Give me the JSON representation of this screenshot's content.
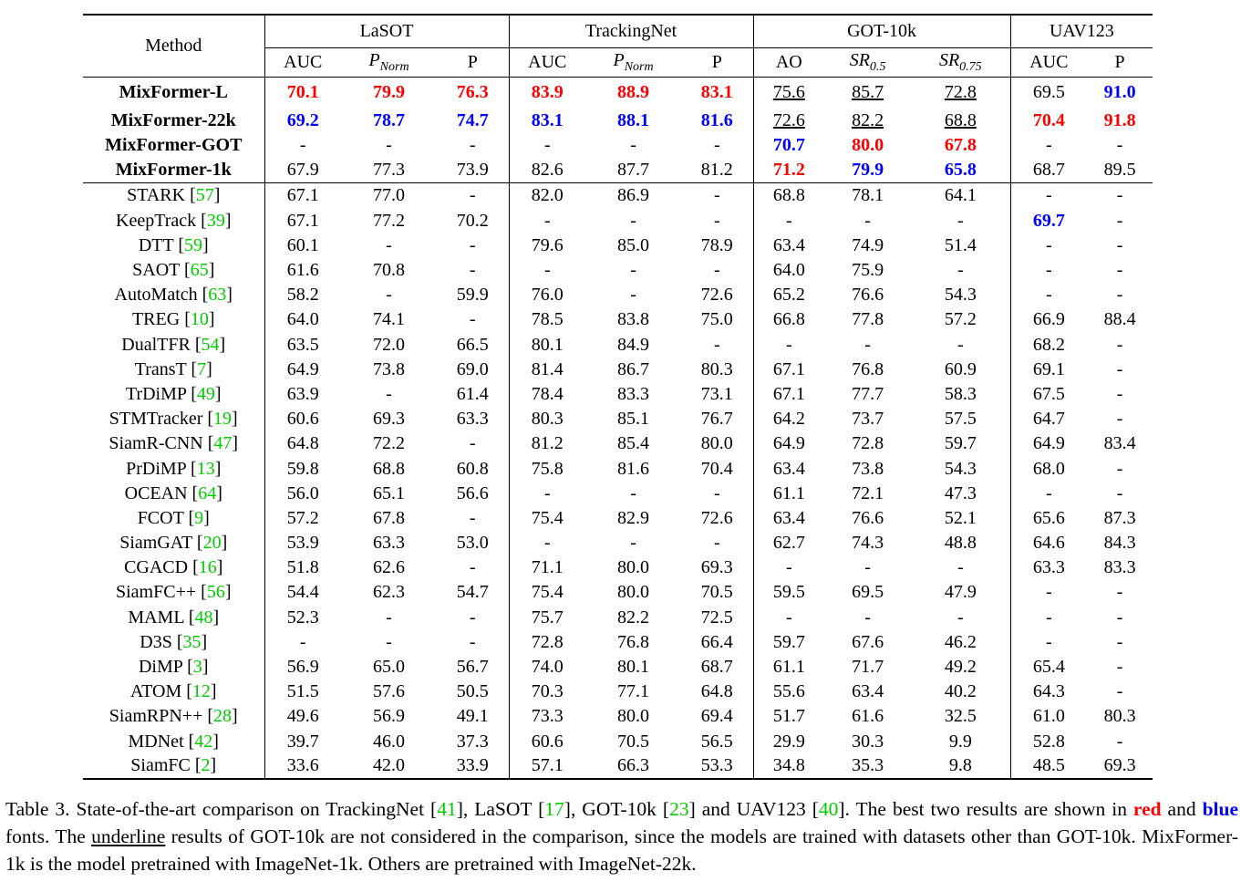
{
  "header": {
    "method": "Method",
    "groups": [
      "LaSOT",
      "TrackingNet",
      "GOT-10k",
      "UAV123"
    ],
    "cols": [
      {
        "base": "AUC",
        "sub": ""
      },
      {
        "base": "P",
        "sub": "Norm"
      },
      {
        "base": "P",
        "sub": ""
      },
      {
        "base": "AUC",
        "sub": ""
      },
      {
        "base": "P",
        "sub": "Norm"
      },
      {
        "base": "P",
        "sub": ""
      },
      {
        "base": "AO",
        "sub": ""
      },
      {
        "base": "SR",
        "sub": "0.5"
      },
      {
        "base": "SR",
        "sub": "0.75"
      },
      {
        "base": "AUC",
        "sub": ""
      },
      {
        "base": "P",
        "sub": ""
      }
    ]
  },
  "ours": [
    {
      "name": "MixFormer-L",
      "cells": [
        [
          "70.1",
          "r"
        ],
        [
          "79.9",
          "r"
        ],
        [
          "76.3",
          "r"
        ],
        [
          "83.9",
          "r"
        ],
        [
          "88.9",
          "r"
        ],
        [
          "83.1",
          "r"
        ],
        [
          "75.6",
          "u"
        ],
        [
          "85.7",
          "u"
        ],
        [
          "72.8",
          "u"
        ],
        [
          "69.5",
          ""
        ],
        [
          "91.0",
          "b"
        ]
      ]
    },
    {
      "name": "MixFormer-22k",
      "cells": [
        [
          "69.2",
          "b"
        ],
        [
          "78.7",
          "b"
        ],
        [
          "74.7",
          "b"
        ],
        [
          "83.1",
          "b"
        ],
        [
          "88.1",
          "b"
        ],
        [
          "81.6",
          "b"
        ],
        [
          "72.6",
          "u"
        ],
        [
          "82.2",
          "u"
        ],
        [
          "68.8",
          "u"
        ],
        [
          "70.4",
          "r"
        ],
        [
          "91.8",
          "r"
        ]
      ]
    },
    {
      "name": "MixFormer-GOT",
      "cells": [
        [
          "-",
          ""
        ],
        [
          "-",
          ""
        ],
        [
          "-",
          ""
        ],
        [
          "-",
          ""
        ],
        [
          "-",
          ""
        ],
        [
          "-",
          ""
        ],
        [
          "70.7",
          "b"
        ],
        [
          "80.0",
          "r"
        ],
        [
          "67.8",
          "r"
        ],
        [
          "-",
          ""
        ],
        [
          "-",
          ""
        ]
      ]
    },
    {
      "name": "MixFormer-1k",
      "cells": [
        [
          "67.9",
          ""
        ],
        [
          "77.3",
          ""
        ],
        [
          "73.9",
          ""
        ],
        [
          "82.6",
          ""
        ],
        [
          "87.7",
          ""
        ],
        [
          "81.2",
          ""
        ],
        [
          "71.2",
          "r"
        ],
        [
          "79.9",
          "b"
        ],
        [
          "65.8",
          "b"
        ],
        [
          "68.7",
          ""
        ],
        [
          "89.5",
          ""
        ]
      ]
    }
  ],
  "others": [
    {
      "name": "STARK",
      "ref": "57",
      "cells": [
        [
          "67.1",
          ""
        ],
        [
          "77.0",
          ""
        ],
        [
          "-",
          ""
        ],
        [
          "82.0",
          ""
        ],
        [
          "86.9",
          ""
        ],
        [
          "-",
          ""
        ],
        [
          "68.8",
          ""
        ],
        [
          "78.1",
          ""
        ],
        [
          "64.1",
          ""
        ],
        [
          "-",
          ""
        ],
        [
          "-",
          ""
        ]
      ]
    },
    {
      "name": "KeepTrack",
      "ref": "39",
      "cells": [
        [
          "67.1",
          ""
        ],
        [
          "77.2",
          ""
        ],
        [
          "70.2",
          ""
        ],
        [
          "-",
          ""
        ],
        [
          "-",
          ""
        ],
        [
          "-",
          ""
        ],
        [
          "-",
          ""
        ],
        [
          "-",
          ""
        ],
        [
          "-",
          ""
        ],
        [
          "69.7",
          "b"
        ],
        [
          "-",
          ""
        ]
      ]
    },
    {
      "name": "DTT",
      "ref": "59",
      "cells": [
        [
          "60.1",
          ""
        ],
        [
          "-",
          ""
        ],
        [
          "-",
          ""
        ],
        [
          "79.6",
          ""
        ],
        [
          "85.0",
          ""
        ],
        [
          "78.9",
          ""
        ],
        [
          "63.4",
          ""
        ],
        [
          "74.9",
          ""
        ],
        [
          "51.4",
          ""
        ],
        [
          "-",
          ""
        ],
        [
          "-",
          ""
        ]
      ]
    },
    {
      "name": "SAOT",
      "ref": "65",
      "cells": [
        [
          "61.6",
          ""
        ],
        [
          "70.8",
          ""
        ],
        [
          "-",
          ""
        ],
        [
          "-",
          ""
        ],
        [
          "-",
          ""
        ],
        [
          "-",
          ""
        ],
        [
          "64.0",
          ""
        ],
        [
          "75.9",
          ""
        ],
        [
          "-",
          ""
        ],
        [
          "-",
          ""
        ],
        [
          "-",
          ""
        ]
      ]
    },
    {
      "name": "AutoMatch",
      "ref": "63",
      "cells": [
        [
          "58.2",
          ""
        ],
        [
          "-",
          ""
        ],
        [
          "59.9",
          ""
        ],
        [
          "76.0",
          ""
        ],
        [
          "-",
          ""
        ],
        [
          "72.6",
          ""
        ],
        [
          "65.2",
          ""
        ],
        [
          "76.6",
          ""
        ],
        [
          "54.3",
          ""
        ],
        [
          "-",
          ""
        ],
        [
          "-",
          ""
        ]
      ]
    },
    {
      "name": "TREG",
      "ref": "10",
      "cells": [
        [
          "64.0",
          ""
        ],
        [
          "74.1",
          ""
        ],
        [
          "-",
          ""
        ],
        [
          "78.5",
          ""
        ],
        [
          "83.8",
          ""
        ],
        [
          "75.0",
          ""
        ],
        [
          "66.8",
          ""
        ],
        [
          "77.8",
          ""
        ],
        [
          "57.2",
          ""
        ],
        [
          "66.9",
          ""
        ],
        [
          "88.4",
          ""
        ]
      ]
    },
    {
      "name": "DualTFR",
      "ref": "54",
      "cells": [
        [
          "63.5",
          ""
        ],
        [
          "72.0",
          ""
        ],
        [
          "66.5",
          ""
        ],
        [
          "80.1",
          ""
        ],
        [
          "84.9",
          ""
        ],
        [
          "-",
          ""
        ],
        [
          "-",
          ""
        ],
        [
          "-",
          ""
        ],
        [
          "-",
          ""
        ],
        [
          "68.2",
          ""
        ],
        [
          "-",
          ""
        ]
      ]
    },
    {
      "name": "TransT",
      "ref": "7",
      "cells": [
        [
          "64.9",
          ""
        ],
        [
          "73.8",
          ""
        ],
        [
          "69.0",
          ""
        ],
        [
          "81.4",
          ""
        ],
        [
          "86.7",
          ""
        ],
        [
          "80.3",
          ""
        ],
        [
          "67.1",
          ""
        ],
        [
          "76.8",
          ""
        ],
        [
          "60.9",
          ""
        ],
        [
          "69.1",
          ""
        ],
        [
          "-",
          ""
        ]
      ]
    },
    {
      "name": "TrDiMP",
      "ref": "49",
      "cells": [
        [
          "63.9",
          ""
        ],
        [
          "-",
          ""
        ],
        [
          "61.4",
          ""
        ],
        [
          "78.4",
          ""
        ],
        [
          "83.3",
          ""
        ],
        [
          "73.1",
          ""
        ],
        [
          "67.1",
          ""
        ],
        [
          "77.7",
          ""
        ],
        [
          "58.3",
          ""
        ],
        [
          "67.5",
          ""
        ],
        [
          "-",
          ""
        ]
      ]
    },
    {
      "name": "STMTracker",
      "ref": "19",
      "cells": [
        [
          "60.6",
          ""
        ],
        [
          "69.3",
          ""
        ],
        [
          "63.3",
          ""
        ],
        [
          "80.3",
          ""
        ],
        [
          "85.1",
          ""
        ],
        [
          "76.7",
          ""
        ],
        [
          "64.2",
          ""
        ],
        [
          "73.7",
          ""
        ],
        [
          "57.5",
          ""
        ],
        [
          "64.7",
          ""
        ],
        [
          "-",
          ""
        ]
      ]
    },
    {
      "name": "SiamR-CNN",
      "ref": "47",
      "cells": [
        [
          "64.8",
          ""
        ],
        [
          "72.2",
          ""
        ],
        [
          "-",
          ""
        ],
        [
          "81.2",
          ""
        ],
        [
          "85.4",
          ""
        ],
        [
          "80.0",
          ""
        ],
        [
          "64.9",
          ""
        ],
        [
          "72.8",
          ""
        ],
        [
          "59.7",
          ""
        ],
        [
          "64.9",
          ""
        ],
        [
          "83.4",
          ""
        ]
      ]
    },
    {
      "name": "PrDiMP",
      "ref": "13",
      "cells": [
        [
          "59.8",
          ""
        ],
        [
          "68.8",
          ""
        ],
        [
          "60.8",
          ""
        ],
        [
          "75.8",
          ""
        ],
        [
          "81.6",
          ""
        ],
        [
          "70.4",
          ""
        ],
        [
          "63.4",
          ""
        ],
        [
          "73.8",
          ""
        ],
        [
          "54.3",
          ""
        ],
        [
          "68.0",
          ""
        ],
        [
          "-",
          ""
        ]
      ]
    },
    {
      "name": "OCEAN",
      "ref": "64",
      "cells": [
        [
          "56.0",
          ""
        ],
        [
          "65.1",
          ""
        ],
        [
          "56.6",
          ""
        ],
        [
          "-",
          ""
        ],
        [
          "-",
          ""
        ],
        [
          "-",
          ""
        ],
        [
          "61.1",
          ""
        ],
        [
          "72.1",
          ""
        ],
        [
          "47.3",
          ""
        ],
        [
          "-",
          ""
        ],
        [
          "-",
          ""
        ]
      ]
    },
    {
      "name": "FCOT",
      "ref": "9",
      "cells": [
        [
          "57.2",
          ""
        ],
        [
          "67.8",
          ""
        ],
        [
          "-",
          ""
        ],
        [
          "75.4",
          ""
        ],
        [
          "82.9",
          ""
        ],
        [
          "72.6",
          ""
        ],
        [
          "63.4",
          ""
        ],
        [
          "76.6",
          ""
        ],
        [
          "52.1",
          ""
        ],
        [
          "65.6",
          ""
        ],
        [
          "87.3",
          ""
        ]
      ]
    },
    {
      "name": "SiamGAT",
      "ref": "20",
      "cells": [
        [
          "53.9",
          ""
        ],
        [
          "63.3",
          ""
        ],
        [
          "53.0",
          ""
        ],
        [
          "-",
          ""
        ],
        [
          "-",
          ""
        ],
        [
          "-",
          ""
        ],
        [
          "62.7",
          ""
        ],
        [
          "74.3",
          ""
        ],
        [
          "48.8",
          ""
        ],
        [
          "64.6",
          ""
        ],
        [
          "84.3",
          ""
        ]
      ]
    },
    {
      "name": "CGACD",
      "ref": "16",
      "cells": [
        [
          "51.8",
          ""
        ],
        [
          "62.6",
          ""
        ],
        [
          "-",
          ""
        ],
        [
          "71.1",
          ""
        ],
        [
          "80.0",
          ""
        ],
        [
          "69.3",
          ""
        ],
        [
          "-",
          ""
        ],
        [
          "-",
          ""
        ],
        [
          "-",
          ""
        ],
        [
          "63.3",
          ""
        ],
        [
          "83.3",
          ""
        ]
      ]
    },
    {
      "name": "SiamFC++",
      "ref": "56",
      "cells": [
        [
          "54.4",
          ""
        ],
        [
          "62.3",
          ""
        ],
        [
          "54.7",
          ""
        ],
        [
          "75.4",
          ""
        ],
        [
          "80.0",
          ""
        ],
        [
          "70.5",
          ""
        ],
        [
          "59.5",
          ""
        ],
        [
          "69.5",
          ""
        ],
        [
          "47.9",
          ""
        ],
        [
          "-",
          ""
        ],
        [
          "-",
          ""
        ]
      ]
    },
    {
      "name": "MAML",
      "ref": "48",
      "cells": [
        [
          "52.3",
          ""
        ],
        [
          "-",
          ""
        ],
        [
          "-",
          ""
        ],
        [
          "75.7",
          ""
        ],
        [
          "82.2",
          ""
        ],
        [
          "72.5",
          ""
        ],
        [
          "-",
          ""
        ],
        [
          "-",
          ""
        ],
        [
          "-",
          ""
        ],
        [
          "-",
          ""
        ],
        [
          "-",
          ""
        ]
      ]
    },
    {
      "name": "D3S",
      "ref": "35",
      "cells": [
        [
          "-",
          ""
        ],
        [
          "-",
          ""
        ],
        [
          "-",
          ""
        ],
        [
          "72.8",
          ""
        ],
        [
          "76.8",
          ""
        ],
        [
          "66.4",
          ""
        ],
        [
          "59.7",
          ""
        ],
        [
          "67.6",
          ""
        ],
        [
          "46.2",
          ""
        ],
        [
          "-",
          ""
        ],
        [
          "-",
          ""
        ]
      ]
    },
    {
      "name": "DiMP",
      "ref": "3",
      "cells": [
        [
          "56.9",
          ""
        ],
        [
          "65.0",
          ""
        ],
        [
          "56.7",
          ""
        ],
        [
          "74.0",
          ""
        ],
        [
          "80.1",
          ""
        ],
        [
          "68.7",
          ""
        ],
        [
          "61.1",
          ""
        ],
        [
          "71.7",
          ""
        ],
        [
          "49.2",
          ""
        ],
        [
          "65.4",
          ""
        ],
        [
          "-",
          ""
        ]
      ]
    },
    {
      "name": "ATOM",
      "ref": "12",
      "cells": [
        [
          "51.5",
          ""
        ],
        [
          "57.6",
          ""
        ],
        [
          "50.5",
          ""
        ],
        [
          "70.3",
          ""
        ],
        [
          "77.1",
          ""
        ],
        [
          "64.8",
          ""
        ],
        [
          "55.6",
          ""
        ],
        [
          "63.4",
          ""
        ],
        [
          "40.2",
          ""
        ],
        [
          "64.3",
          ""
        ],
        [
          "-",
          ""
        ]
      ]
    },
    {
      "name": "SiamRPN++",
      "ref": "28",
      "cells": [
        [
          "49.6",
          ""
        ],
        [
          "56.9",
          ""
        ],
        [
          "49.1",
          ""
        ],
        [
          "73.3",
          ""
        ],
        [
          "80.0",
          ""
        ],
        [
          "69.4",
          ""
        ],
        [
          "51.7",
          ""
        ],
        [
          "61.6",
          ""
        ],
        [
          "32.5",
          ""
        ],
        [
          "61.0",
          ""
        ],
        [
          "80.3",
          ""
        ]
      ]
    },
    {
      "name": "MDNet",
      "ref": "42",
      "cells": [
        [
          "39.7",
          ""
        ],
        [
          "46.0",
          ""
        ],
        [
          "37.3",
          ""
        ],
        [
          "60.6",
          ""
        ],
        [
          "70.5",
          ""
        ],
        [
          "56.5",
          ""
        ],
        [
          "29.9",
          ""
        ],
        [
          "30.3",
          ""
        ],
        [
          "9.9",
          ""
        ],
        [
          "52.8",
          ""
        ],
        [
          "-",
          ""
        ]
      ]
    },
    {
      "name": "SiamFC",
      "ref": "2",
      "cells": [
        [
          "33.6",
          ""
        ],
        [
          "42.0",
          ""
        ],
        [
          "33.9",
          ""
        ],
        [
          "57.1",
          ""
        ],
        [
          "66.3",
          ""
        ],
        [
          "53.3",
          ""
        ],
        [
          "34.8",
          ""
        ],
        [
          "35.3",
          ""
        ],
        [
          "9.8",
          ""
        ],
        [
          "48.5",
          ""
        ],
        [
          "69.3",
          ""
        ]
      ]
    }
  ],
  "caption": {
    "label": "Table 3.",
    "t1": " State-of-the-art comparison on TrackingNet [",
    "r1": "41",
    "t2": "], LaSOT [",
    "r2": "17",
    "t3": "], GOT-10k [",
    "r3": "23",
    "t4": "] and UAV123 [",
    "r4": "40",
    "t5": "]. The best two results are shown in ",
    "red_word": "red",
    "t6": " and ",
    "blue_word": "blue",
    "t7": " fonts. The ",
    "underline_word": "underline",
    "t8": " results of GOT-10k are not considered in the comparison, since the models are trained with datasets other than GOT-10k. MixFormer-1k is the model pretrained with ImageNet-1k. Others are pretrained with ImageNet-22k."
  },
  "colors": {
    "best": "#ff0000",
    "second": "#0000ff",
    "ref": "#00cc00"
  }
}
